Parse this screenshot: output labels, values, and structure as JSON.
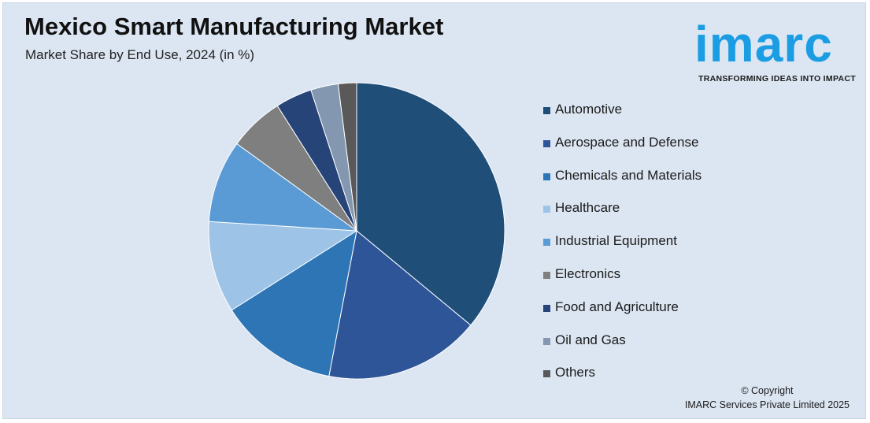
{
  "header": {
    "title": "Mexico Smart Manufacturing Market",
    "subtitle": "Market Share by End Use, 2024 (in %)"
  },
  "logo": {
    "word": "imarc",
    "tagline": "TRANSFORMING IDEAS INTO IMPACT",
    "color": "#1b9de3"
  },
  "footer": {
    "copyright": "© Copyright",
    "company": "IMARC Services Private Limited 2025"
  },
  "chart_data": {
    "type": "pie",
    "title": "Market Share by End Use, 2024 (in %)",
    "legend_position": "right",
    "categories": [
      "Automotive",
      "Aerospace and Defense",
      "Chemicals and Materials",
      "Healthcare",
      "Industrial Equipment",
      "Electronics",
      "Food and Agriculture",
      "Oil and Gas",
      "Others"
    ],
    "values": [
      36,
      17,
      13,
      10,
      9,
      6,
      4,
      3,
      2
    ],
    "colors": [
      "#1f4e79",
      "#2e5597",
      "#2e75b6",
      "#9dc3e6",
      "#5b9bd5",
      "#7f7f7f",
      "#264478",
      "#8497b0",
      "#595959"
    ]
  }
}
